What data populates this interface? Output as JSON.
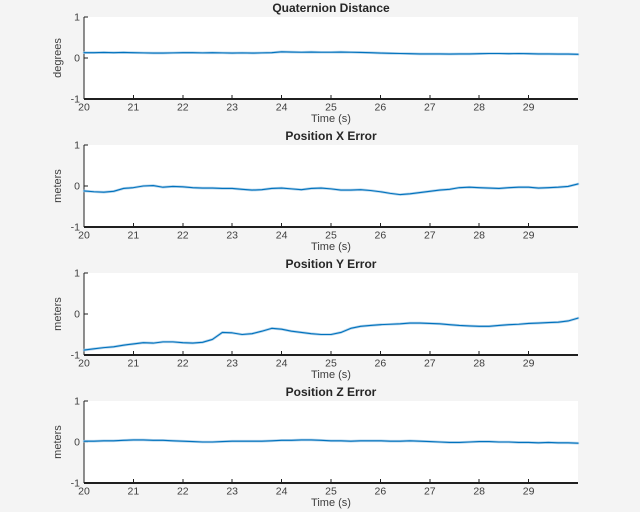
{
  "figure": {
    "background": "#f4f4f4",
    "plot_background": "#ffffff",
    "axis_color": "#1f1f1f",
    "tick_label_color": "#3d3d3d",
    "title_color": "#262626",
    "line_color": "#0072bd",
    "line_halo_color": "#a6cbe8"
  },
  "chart_data": [
    {
      "type": "line",
      "title": "Quaternion Distance",
      "xlabel": "Time (s)",
      "ylabel": "degrees",
      "xlim": [
        20,
        30
      ],
      "ylim": [
        -1,
        1
      ],
      "xticks": [
        20,
        21,
        22,
        23,
        24,
        25,
        26,
        27,
        28,
        29
      ],
      "yticks": [
        -1,
        0,
        1
      ],
      "grid": false,
      "legend": null,
      "x_start": 20,
      "x_step": 0.2,
      "values": [
        0.13,
        0.13,
        0.135,
        0.13,
        0.135,
        0.13,
        0.125,
        0.12,
        0.12,
        0.125,
        0.13,
        0.13,
        0.125,
        0.13,
        0.125,
        0.12,
        0.125,
        0.12,
        0.125,
        0.13,
        0.15,
        0.145,
        0.14,
        0.145,
        0.14,
        0.14,
        0.145,
        0.14,
        0.135,
        0.13,
        0.12,
        0.115,
        0.11,
        0.105,
        0.1,
        0.1,
        0.1,
        0.095,
        0.1,
        0.1,
        0.105,
        0.11,
        0.11,
        0.105,
        0.11,
        0.105,
        0.1,
        0.1,
        0.095,
        0.095,
        0.09
      ]
    },
    {
      "type": "line",
      "title": "Position X Error",
      "xlabel": "Time (s)",
      "ylabel": "meters",
      "xlim": [
        20,
        30
      ],
      "ylim": [
        -1,
        1
      ],
      "xticks": [
        20,
        21,
        22,
        23,
        24,
        25,
        26,
        27,
        28,
        29
      ],
      "yticks": [
        -1,
        0,
        1
      ],
      "grid": false,
      "legend": null,
      "x_start": 20,
      "x_step": 0.2,
      "values": [
        -0.12,
        -0.14,
        -0.15,
        -0.13,
        -0.06,
        -0.04,
        0.0,
        0.01,
        -0.03,
        -0.01,
        -0.02,
        -0.04,
        -0.05,
        -0.05,
        -0.06,
        -0.06,
        -0.08,
        -0.1,
        -0.09,
        -0.06,
        -0.05,
        -0.07,
        -0.09,
        -0.06,
        -0.05,
        -0.07,
        -0.1,
        -0.1,
        -0.09,
        -0.11,
        -0.14,
        -0.18,
        -0.21,
        -0.19,
        -0.16,
        -0.13,
        -0.1,
        -0.08,
        -0.04,
        -0.03,
        -0.04,
        -0.05,
        -0.06,
        -0.04,
        -0.03,
        -0.03,
        -0.05,
        -0.04,
        -0.03,
        -0.01,
        0.05
      ]
    },
    {
      "type": "line",
      "title": "Position Y Error",
      "xlabel": "Time (s)",
      "ylabel": "meters",
      "xlim": [
        20,
        30
      ],
      "ylim": [
        -1,
        1
      ],
      "xticks": [
        20,
        21,
        22,
        23,
        24,
        25,
        26,
        27,
        28,
        29
      ],
      "yticks": [
        -1,
        0,
        1
      ],
      "grid": false,
      "legend": null,
      "x_start": 20,
      "x_step": 0.2,
      "values": [
        -0.88,
        -0.85,
        -0.82,
        -0.8,
        -0.76,
        -0.73,
        -0.7,
        -0.71,
        -0.68,
        -0.68,
        -0.7,
        -0.71,
        -0.69,
        -0.62,
        -0.45,
        -0.46,
        -0.5,
        -0.48,
        -0.42,
        -0.35,
        -0.37,
        -0.42,
        -0.45,
        -0.48,
        -0.5,
        -0.5,
        -0.45,
        -0.35,
        -0.3,
        -0.28,
        -0.26,
        -0.25,
        -0.24,
        -0.22,
        -0.22,
        -0.23,
        -0.24,
        -0.26,
        -0.28,
        -0.29,
        -0.3,
        -0.3,
        -0.28,
        -0.26,
        -0.25,
        -0.23,
        -0.22,
        -0.21,
        -0.2,
        -0.17,
        -0.1
      ]
    },
    {
      "type": "line",
      "title": "Position Z Error",
      "xlabel": "Time (s)",
      "ylabel": "meters",
      "xlim": [
        20,
        30
      ],
      "ylim": [
        -1,
        1
      ],
      "xticks": [
        20,
        21,
        22,
        23,
        24,
        25,
        26,
        27,
        28,
        29
      ],
      "yticks": [
        -1,
        0,
        1
      ],
      "grid": false,
      "legend": null,
      "x_start": 20,
      "x_step": 0.2,
      "values": [
        0.02,
        0.02,
        0.03,
        0.03,
        0.04,
        0.05,
        0.05,
        0.04,
        0.04,
        0.03,
        0.02,
        0.01,
        0.0,
        0.0,
        0.01,
        0.02,
        0.02,
        0.02,
        0.02,
        0.03,
        0.04,
        0.04,
        0.05,
        0.05,
        0.04,
        0.03,
        0.03,
        0.02,
        0.03,
        0.03,
        0.03,
        0.02,
        0.02,
        0.03,
        0.02,
        0.01,
        0.0,
        -0.01,
        -0.01,
        0.0,
        0.01,
        0.01,
        0.0,
        0.0,
        -0.01,
        -0.01,
        -0.02,
        -0.01,
        -0.02,
        -0.02,
        -0.03
      ]
    }
  ]
}
